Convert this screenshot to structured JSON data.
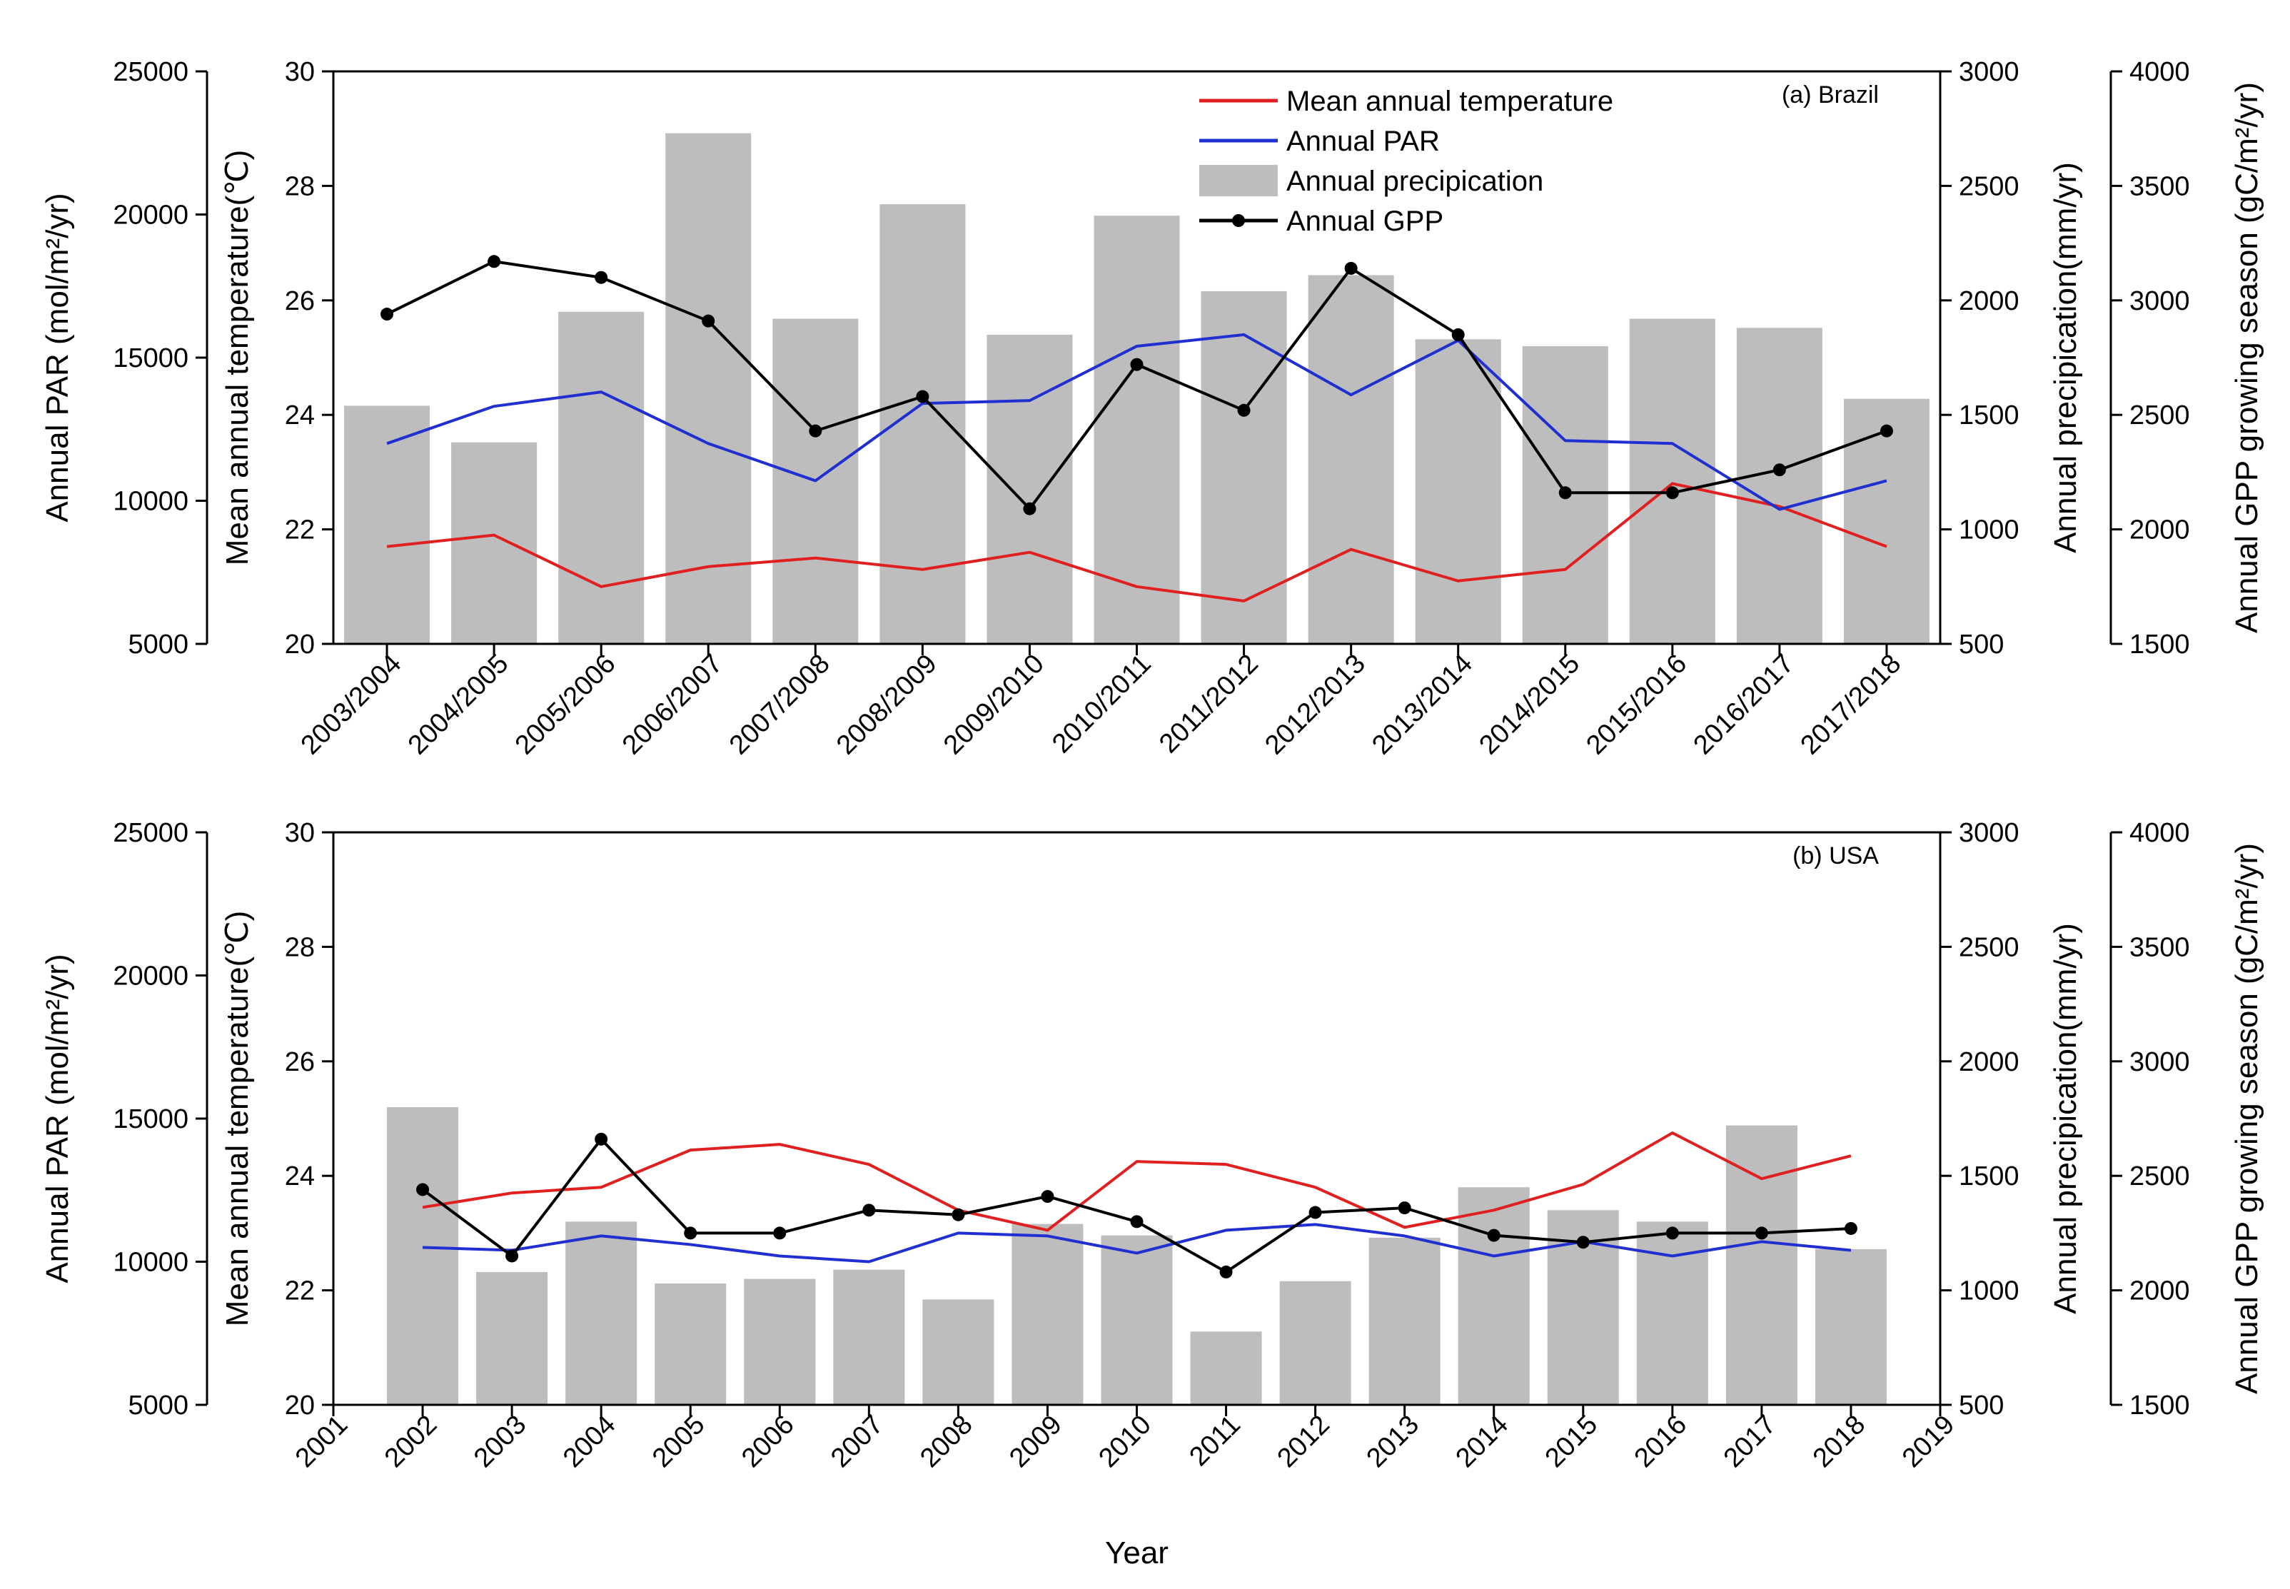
{
  "chart_data": [
    {
      "type": "bar+line",
      "panel_label": "(a) Brazil",
      "categories": [
        "2003/2004",
        "2004/2005",
        "2005/2006",
        "2006/2007",
        "2007/2008",
        "2008/2009",
        "2009/2010",
        "2010/2011",
        "2011/2012",
        "2012/2013",
        "2013/2014",
        "2014/2015",
        "2015/2016",
        "2016/2017",
        "2017/2018"
      ],
      "legend": {
        "temperature": "Mean annual temperature",
        "par": "Annual PAR",
        "precipitation": "Annual precipication",
        "gpp": "Annual GPP",
        "placement": "top-right"
      },
      "axes": {
        "par": {
          "title": "Annual PAR (mol/m²/yr)",
          "lim": [
            5000,
            25000
          ],
          "ticks": [
            5000,
            10000,
            15000,
            20000,
            25000
          ]
        },
        "temp": {
          "title": "Mean annual temperature(℃)",
          "lim": [
            20,
            30
          ],
          "ticks": [
            20,
            22,
            24,
            26,
            28,
            30
          ]
        },
        "precip": {
          "title": "Annual precipication(mm/yr)",
          "lim": [
            500,
            3000
          ],
          "ticks": [
            500,
            1000,
            1500,
            2000,
            2500,
            3000
          ]
        },
        "gpp": {
          "title": "Annual GPP growing season (gC/m²/yr)",
          "lim": [
            1500,
            4000
          ],
          "ticks": [
            1500,
            2000,
            2500,
            3000,
            3500,
            4000
          ]
        }
      },
      "series": [
        {
          "name": "Mean annual temperature",
          "axis": "temp",
          "color": "#e02020",
          "values": [
            21.7,
            21.9,
            21.0,
            21.35,
            21.5,
            21.3,
            21.6,
            21.0,
            20.75,
            21.65,
            21.1,
            21.3,
            22.8,
            22.4,
            21.7
          ]
        },
        {
          "name": "Annual PAR",
          "axis": "par",
          "color": "#1f2fd0",
          "values": [
            12000,
            13300,
            13800,
            12000,
            10700,
            13400,
            13500,
            15400,
            15800,
            13700,
            15600,
            12100,
            12000,
            9700,
            10700
          ]
        },
        {
          "name": "Annual precipication",
          "axis": "precip",
          "color": "#bdbdbd",
          "values": [
            1540,
            1380,
            1950,
            2730,
            1920,
            2420,
            1850,
            2370,
            2040,
            2110,
            1830,
            1800,
            1920,
            1880,
            1570
          ]
        },
        {
          "name": "Annual GPP",
          "axis": "gpp",
          "color": "#000000",
          "values": [
            2940,
            3170,
            3100,
            2910,
            2430,
            2580,
            2090,
            2720,
            2520,
            3140,
            2850,
            2160,
            2160,
            2260,
            2430
          ]
        }
      ]
    },
    {
      "type": "bar+line",
      "panel_label": "(b) USA",
      "xlabel": "Year",
      "x_ticks": [
        2001,
        2002,
        2003,
        2004,
        2005,
        2006,
        2007,
        2008,
        2009,
        2010,
        2011,
        2012,
        2013,
        2014,
        2015,
        2016,
        2017,
        2018,
        2019
      ],
      "x": [
        2002,
        2003,
        2004,
        2005,
        2006,
        2007,
        2008,
        2009,
        2010,
        2011,
        2012,
        2013,
        2014,
        2015,
        2016,
        2017,
        2018
      ],
      "xlim": [
        2001,
        2019
      ],
      "axes": {
        "par": {
          "title": "Annual PAR (mol/m²/yr)",
          "lim": [
            5000,
            25000
          ],
          "ticks": [
            5000,
            10000,
            15000,
            20000,
            25000
          ]
        },
        "temp": {
          "title": "Mean annual temperature(℃)",
          "lim": [
            20,
            30
          ],
          "ticks": [
            20,
            22,
            24,
            26,
            28,
            30
          ]
        },
        "precip": {
          "title": "Annual precipication(mm/yr)",
          "lim": [
            500,
            3000
          ],
          "ticks": [
            500,
            1000,
            1500,
            2000,
            2500,
            3000
          ]
        },
        "gpp": {
          "title": "Annual GPP growing season (gC/m²/yr)",
          "lim": [
            1500,
            4000
          ],
          "ticks": [
            1500,
            2000,
            2500,
            3000,
            3500,
            4000
          ]
        }
      },
      "series": [
        {
          "name": "Mean annual temperature",
          "axis": "temp",
          "color": "#e02020",
          "values": [
            23.45,
            23.7,
            23.8,
            24.45,
            24.55,
            24.2,
            23.4,
            23.05,
            24.25,
            24.2,
            23.8,
            23.1,
            23.4,
            23.85,
            24.75,
            23.95,
            24.35
          ]
        },
        {
          "name": "Annual PAR",
          "axis": "par",
          "color": "#1f2fd0",
          "values": [
            10500,
            10400,
            10900,
            10600,
            10200,
            10000,
            11000,
            10900,
            10300,
            11100,
            11300,
            10900,
            10200,
            10700,
            10200,
            10700,
            10400
          ]
        },
        {
          "name": "Annual precipication",
          "axis": "precip",
          "color": "#bdbdbd",
          "values": [
            1800,
            1080,
            1300,
            1030,
            1050,
            1090,
            960,
            1290,
            1240,
            820,
            1040,
            1230,
            1450,
            1350,
            1300,
            1720,
            1180
          ]
        },
        {
          "name": "Annual GPP",
          "axis": "gpp",
          "color": "#000000",
          "values": [
            2440,
            2150,
            2660,
            2250,
            2250,
            2350,
            2330,
            2410,
            2300,
            2080,
            2340,
            2360,
            2240,
            2210,
            2250,
            2250,
            2270
          ]
        }
      ]
    }
  ]
}
